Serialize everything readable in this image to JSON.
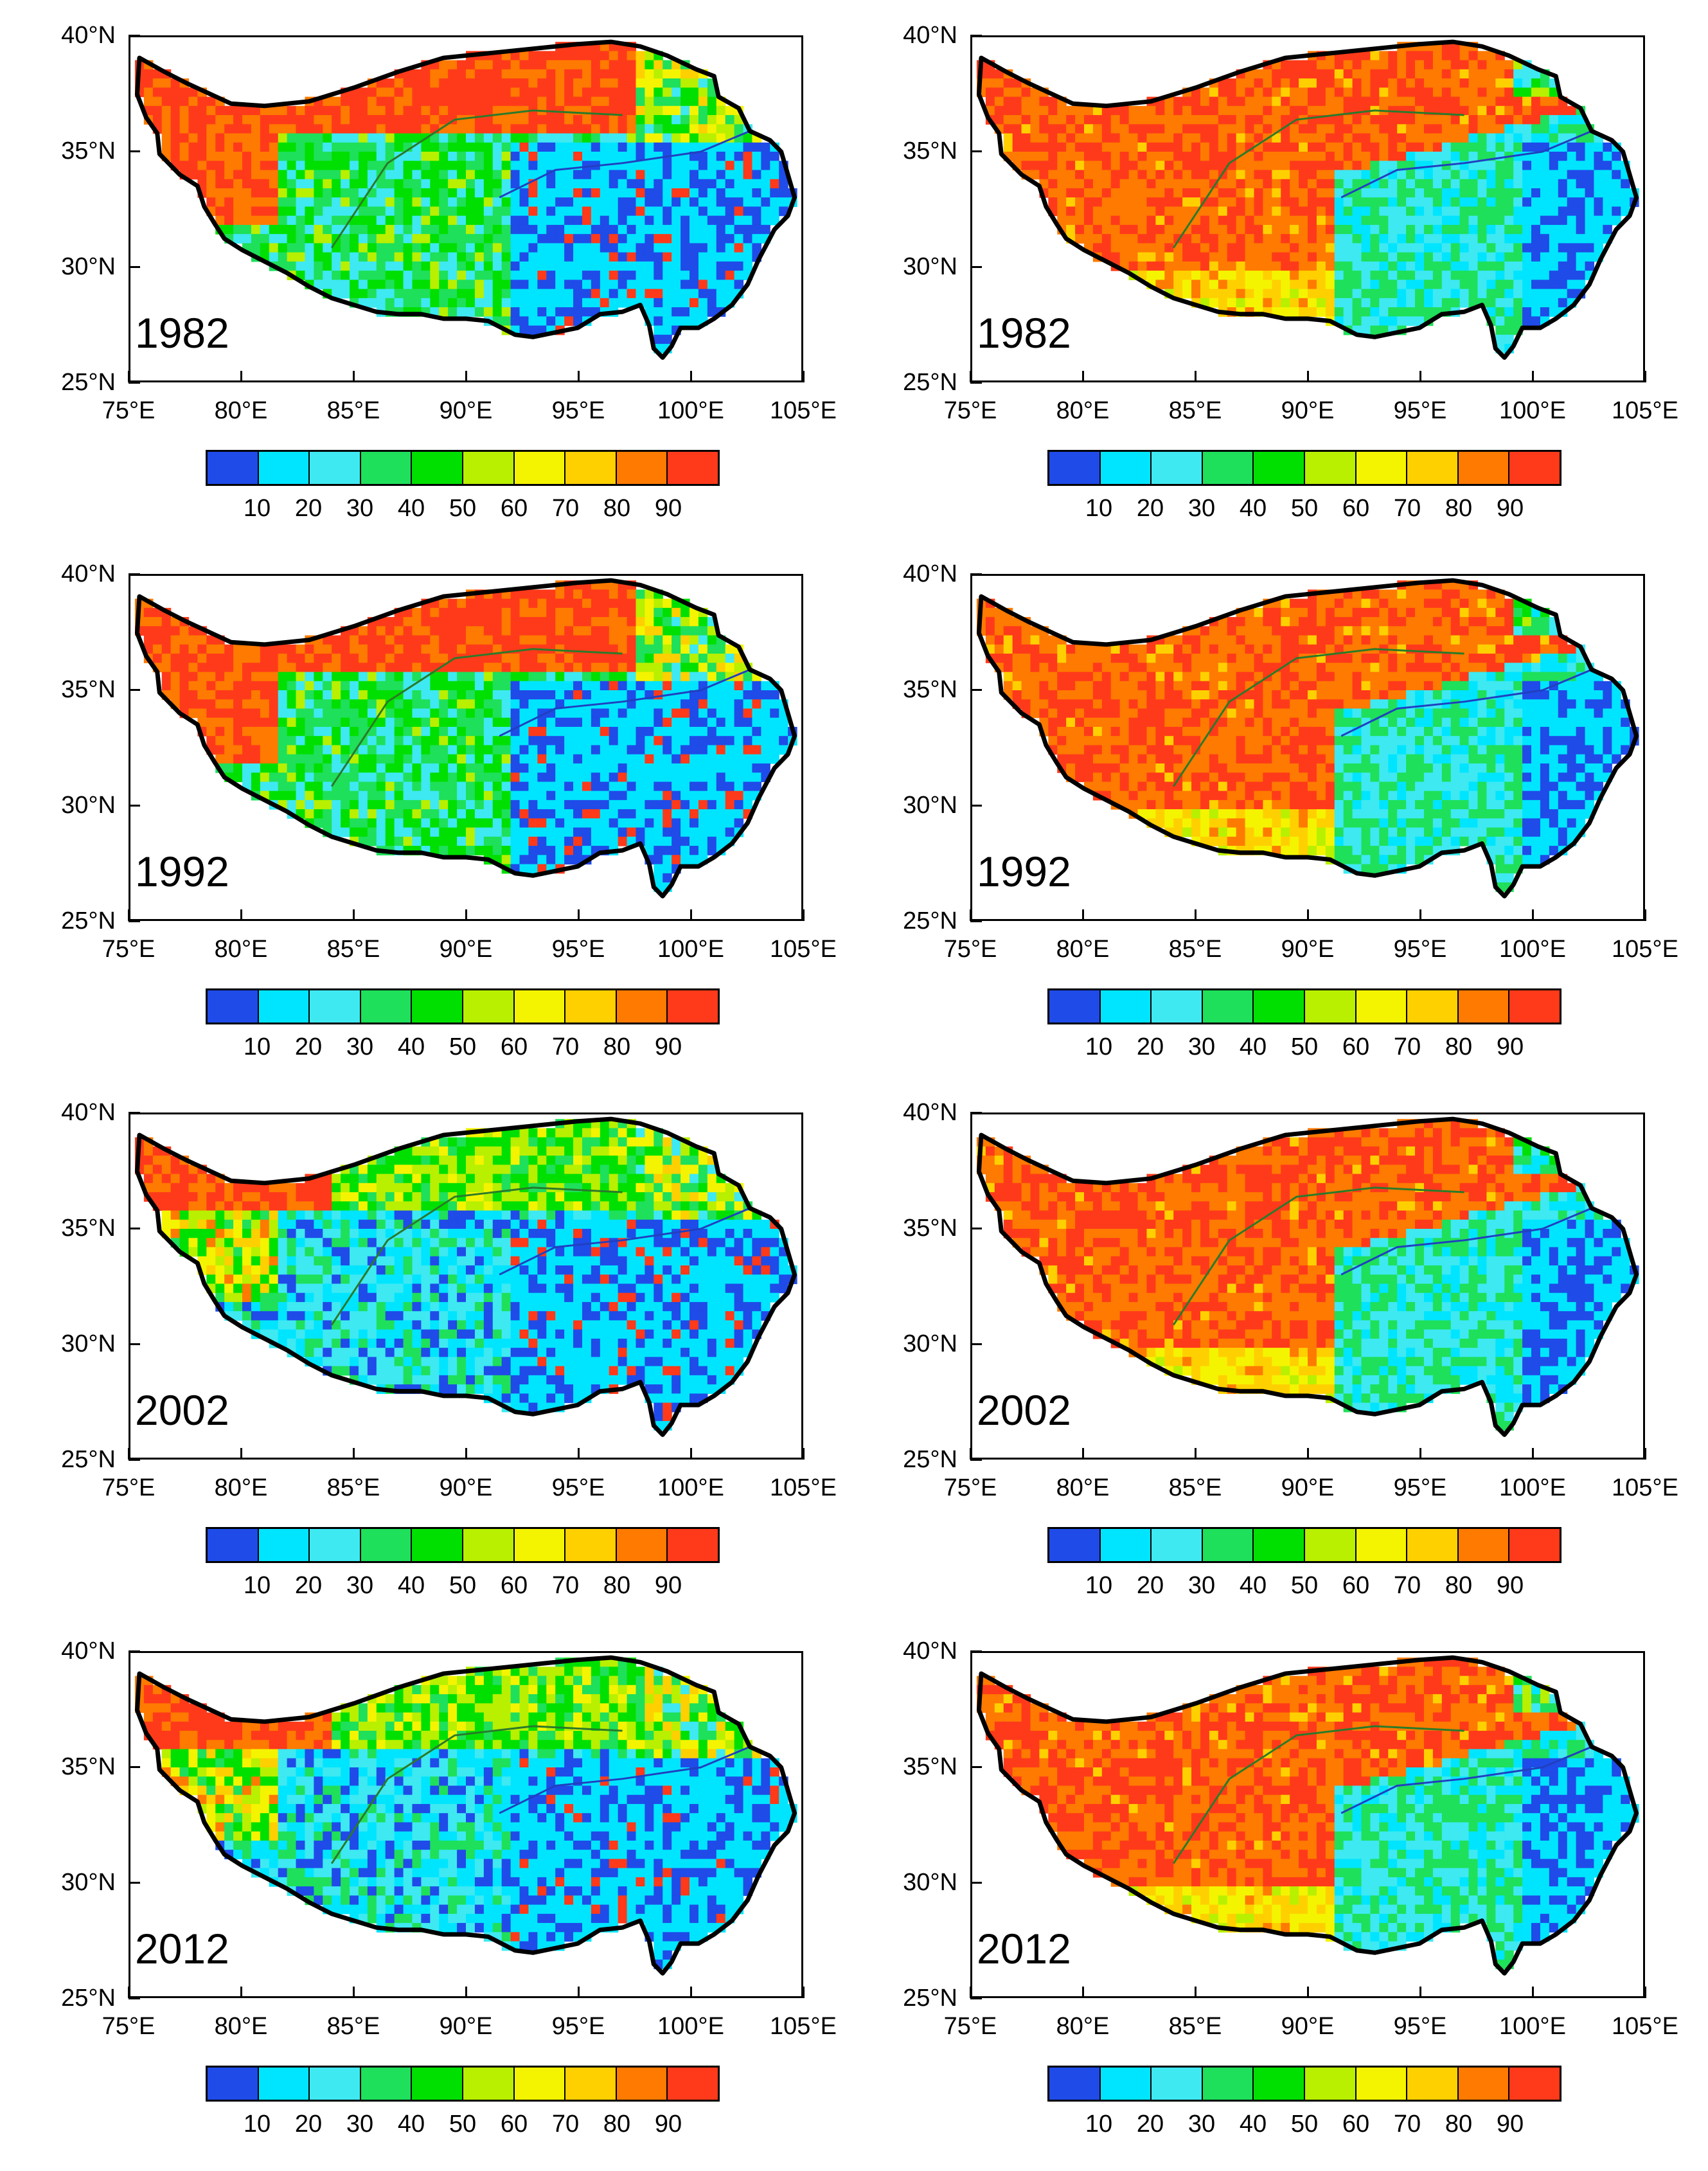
{
  "figure": {
    "lat_ticks": [
      "40°N",
      "35°N",
      "30°N",
      "25°N"
    ],
    "lon_ticks": [
      "75°E",
      "80°E",
      "85°E",
      "90°E",
      "95°E",
      "100°E",
      "105°E"
    ],
    "colorbar": {
      "labels": [
        "10",
        "20",
        "30",
        "40",
        "50",
        "60",
        "70",
        "80",
        "90"
      ],
      "colors": [
        "#1f4be8",
        "#00e5ff",
        "#3ee9f2",
        "#1ee05a",
        "#00e000",
        "#b8f000",
        "#f4f400",
        "#ffd000",
        "#ff7a00",
        "#ff3a1a"
      ]
    },
    "panels": [
      {
        "year": "1982",
        "column": "left"
      },
      {
        "year": "1982",
        "column": "right"
      },
      {
        "year": "1992",
        "column": "left"
      },
      {
        "year": "1992",
        "column": "right"
      },
      {
        "year": "2002",
        "column": "left"
      },
      {
        "year": "2002",
        "column": "right"
      },
      {
        "year": "2012",
        "column": "left"
      },
      {
        "year": "2012",
        "column": "right"
      }
    ]
  },
  "chart_data": {
    "type": "heatmap",
    "title": "",
    "x_range": [
      75,
      105
    ],
    "y_range": [
      25,
      40
    ],
    "xlabel": "",
    "ylabel": "",
    "years": [
      "1982",
      "1992",
      "2002",
      "2012"
    ],
    "colorbar_levels": [
      10,
      20,
      30,
      40,
      50,
      60,
      70,
      80,
      90
    ]
  }
}
